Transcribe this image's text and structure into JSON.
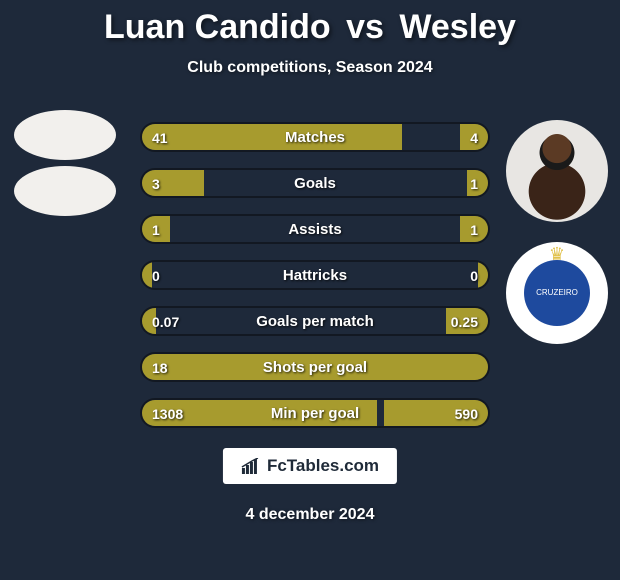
{
  "title": {
    "player1": "Luan Candido",
    "vs": "vs",
    "player2": "Wesley"
  },
  "subtitle": "Club competitions, Season 2024",
  "colors": {
    "background": "#1e293a",
    "bar_fill": "#a79b2e",
    "text": "#ffffff",
    "brand_box_bg": "#ffffff",
    "brand_text": "#1f2a38"
  },
  "players": {
    "left": {
      "has_photo": false,
      "has_club_crest": false
    },
    "right": {
      "has_photo": true,
      "has_club_crest": true,
      "crest_text": "CRUZEIRO",
      "crest_bg": "#1e4a9e"
    }
  },
  "rows": [
    {
      "label": "Matches",
      "left_val": "41",
      "right_val": "4",
      "left_pct": 75,
      "right_pct": 8
    },
    {
      "label": "Goals",
      "left_val": "3",
      "right_val": "1",
      "left_pct": 18,
      "right_pct": 6
    },
    {
      "label": "Assists",
      "left_val": "1",
      "right_val": "1",
      "left_pct": 8,
      "right_pct": 8
    },
    {
      "label": "Hattricks",
      "left_val": "0",
      "right_val": "0",
      "left_pct": 3,
      "right_pct": 3
    },
    {
      "label": "Goals per match",
      "left_val": "0.07",
      "right_val": "0.25",
      "left_pct": 4,
      "right_pct": 12
    },
    {
      "label": "Shots per goal",
      "left_val": "18",
      "right_val": "",
      "left_pct": 100,
      "right_pct": 0
    },
    {
      "label": "Min per goal",
      "left_val": "1308",
      "right_val": "590",
      "left_pct": 68,
      "right_pct": 30
    }
  ],
  "brand": {
    "name": "FcTables.com"
  },
  "date": "4 december 2024"
}
